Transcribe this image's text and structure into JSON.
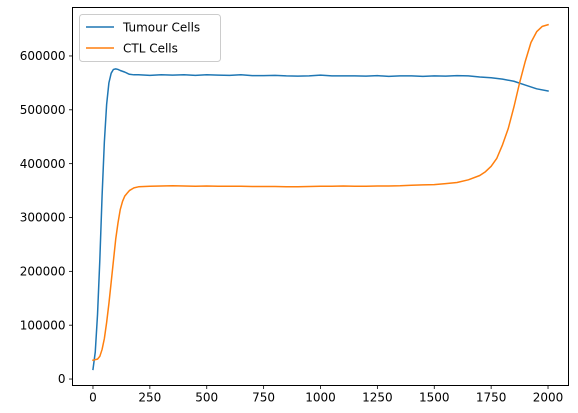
{
  "chart_data": {
    "type": "line",
    "title": "",
    "xlabel": "",
    "ylabel": "",
    "xlim": [
      -90,
      2090
    ],
    "ylim": [
      -12000,
      690000
    ],
    "x_ticks": [
      0,
      250,
      500,
      750,
      1000,
      1250,
      1500,
      1750,
      2000
    ],
    "x_tick_labels": [
      "0",
      "250",
      "500",
      "750",
      "1000",
      "1250",
      "1500",
      "1750",
      "2000"
    ],
    "y_ticks": [
      0,
      100000,
      200000,
      300000,
      400000,
      500000,
      600000
    ],
    "y_tick_labels": [
      "0",
      "100000",
      "200000",
      "300000",
      "400000",
      "500000",
      "600000"
    ],
    "grid": false,
    "legend_position": "upper-left",
    "series": [
      {
        "name": "Tumour Cells",
        "color": "#1f77b4",
        "x": [
          0,
          10,
          20,
          30,
          40,
          50,
          60,
          70,
          80,
          90,
          100,
          110,
          120,
          140,
          160,
          180,
          200,
          250,
          300,
          350,
          400,
          450,
          500,
          550,
          600,
          650,
          700,
          750,
          800,
          850,
          900,
          950,
          1000,
          1050,
          1100,
          1150,
          1200,
          1250,
          1300,
          1350,
          1400,
          1450,
          1500,
          1550,
          1600,
          1650,
          1700,
          1750,
          1800,
          1850,
          1900,
          1950,
          2000
        ],
        "y": [
          18000,
          50000,
          120000,
          220000,
          340000,
          440000,
          510000,
          550000,
          568000,
          575000,
          576000,
          575000,
          573000,
          570000,
          566000,
          565000,
          565000,
          564000,
          565000,
          564500,
          565000,
          564000,
          565000,
          564500,
          564000,
          565000,
          563500,
          563500,
          564000,
          563000,
          562500,
          563000,
          564500,
          563000,
          563000,
          563000,
          562500,
          563500,
          562000,
          563000,
          563000,
          562000,
          563000,
          562500,
          563500,
          563000,
          561000,
          559500,
          557000,
          553000,
          546000,
          539000,
          535000
        ]
      },
      {
        "name": "CTL Cells",
        "color": "#ff7f0e",
        "x": [
          0,
          10,
          20,
          30,
          40,
          50,
          60,
          70,
          80,
          90,
          100,
          110,
          120,
          130,
          140,
          160,
          180,
          200,
          250,
          300,
          350,
          400,
          450,
          500,
          550,
          600,
          650,
          700,
          750,
          800,
          850,
          900,
          950,
          1000,
          1050,
          1100,
          1150,
          1200,
          1250,
          1300,
          1350,
          1400,
          1450,
          1500,
          1550,
          1600,
          1650,
          1700,
          1725,
          1750,
          1775,
          1800,
          1825,
          1850,
          1875,
          1900,
          1925,
          1950,
          1975,
          2000
        ],
        "y": [
          35000,
          36000,
          37000,
          42000,
          55000,
          75000,
          105000,
          140000,
          180000,
          220000,
          260000,
          290000,
          315000,
          330000,
          340000,
          350000,
          355000,
          357000,
          358000,
          358500,
          359000,
          358500,
          358000,
          358500,
          358000,
          358000,
          358000,
          357500,
          357500,
          357500,
          357000,
          357000,
          357500,
          358000,
          358000,
          358500,
          358000,
          358000,
          358500,
          358500,
          359000,
          360000,
          360500,
          361000,
          363000,
          365000,
          370000,
          378000,
          385000,
          395000,
          410000,
          435000,
          465000,
          505000,
          550000,
          590000,
          625000,
          645000,
          655000,
          658000
        ]
      }
    ]
  }
}
